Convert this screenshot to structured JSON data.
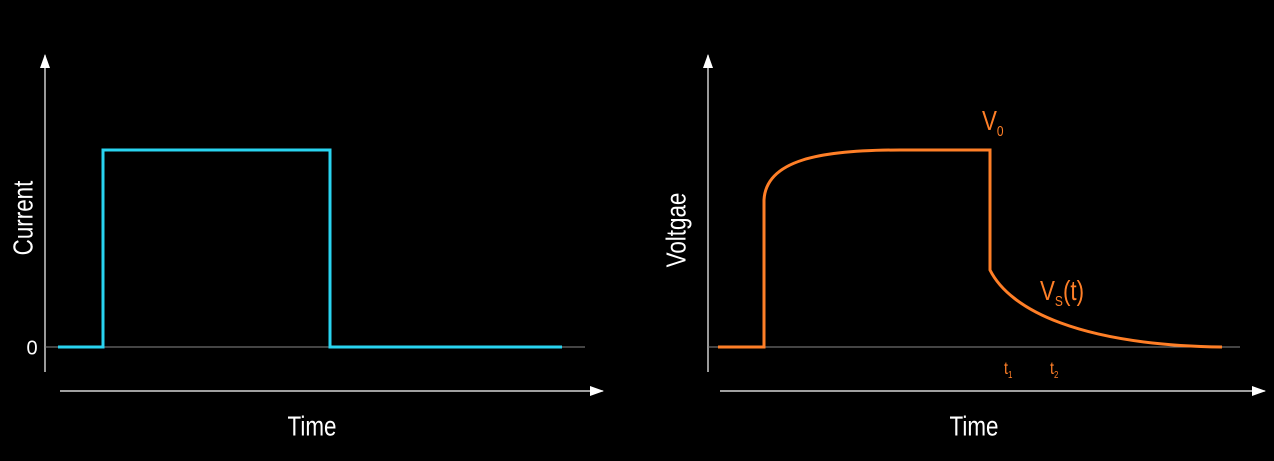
{
  "left": {
    "y_label": "Current",
    "zero_label": "0",
    "x_label": "Time"
  },
  "right": {
    "y_label": "Voltgae",
    "x_label": "Time",
    "v0": {
      "main": "V",
      "sub": "0"
    },
    "vs": {
      "main": "V",
      "sub": "S",
      "rest": "(t)"
    },
    "t1": {
      "main": "t",
      "sub": "1"
    },
    "t2": {
      "main": "t",
      "sub": "2"
    }
  }
}
